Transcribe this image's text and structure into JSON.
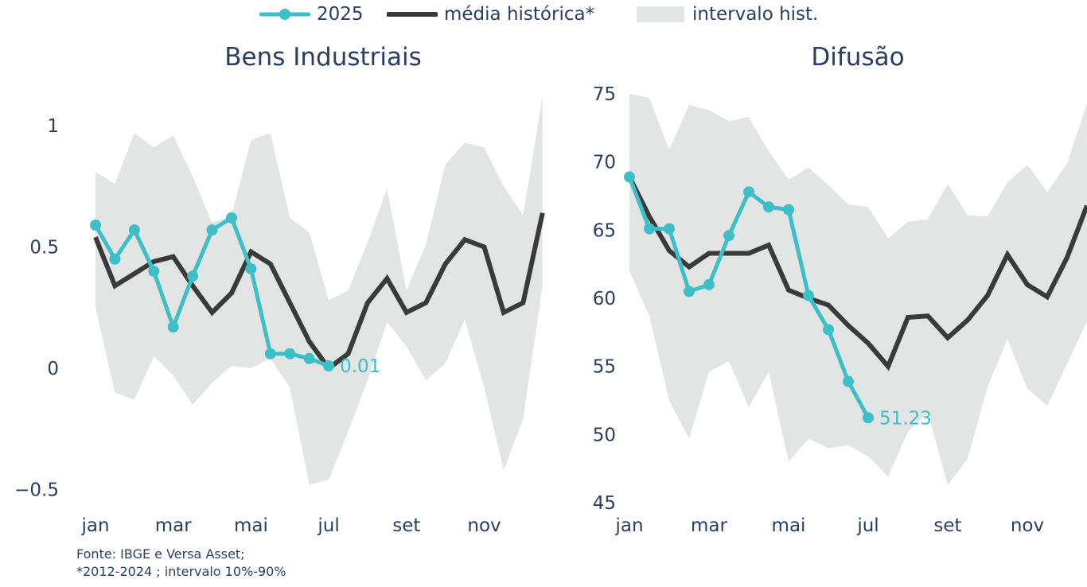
{
  "legend": {
    "items": [
      {
        "label": "2025",
        "color": "#3cbfc6",
        "kind": "line-marker"
      },
      {
        "label": "média histórica*",
        "color": "#3a3a3a",
        "kind": "line"
      },
      {
        "label": "intervalo hist.",
        "color": "#e3e4e4",
        "kind": "band"
      }
    ]
  },
  "footnote": {
    "line1": "Fonte: IBGE e Versa Asset;",
    "line2": "*2012-2024 ; intervalo 10%-90%"
  },
  "chart_data": [
    {
      "type": "line",
      "title": "Bens Industriais",
      "x_ticks": [
        "jan",
        "mar",
        "mai",
        "jul",
        "set",
        "nov"
      ],
      "y_ticks": [
        "−0.5",
        "0",
        "0.5",
        "1"
      ],
      "y_tick_values": [
        -0.5,
        0,
        0.5,
        1
      ],
      "ylim": [
        -0.53,
        1.13
      ],
      "xlim": [
        0.0,
        11.75
      ],
      "end_label": "0.01",
      "series": [
        {
          "name": "2025",
          "color": "#3cbfc6",
          "x": [
            0,
            0.5,
            1,
            1.5,
            2,
            2.5,
            3,
            3.5,
            4,
            4.5,
            5,
            5.5,
            6
          ],
          "values": [
            0.59,
            0.45,
            0.57,
            0.4,
            0.17,
            0.38,
            0.57,
            0.62,
            0.41,
            0.06,
            0.06,
            0.04,
            0.01
          ]
        },
        {
          "name": "média histórica*",
          "color": "#3a3a3a",
          "x": [
            0,
            0.5,
            1,
            1.5,
            2,
            2.5,
            3,
            3.5,
            4,
            4.5,
            5,
            5.5,
            6,
            6.5,
            7,
            7.5,
            8,
            8.5,
            9,
            9.5,
            10,
            10.5,
            11,
            11.5
          ],
          "values": [
            0.54,
            0.34,
            0.39,
            0.44,
            0.46,
            0.34,
            0.23,
            0.31,
            0.48,
            0.43,
            0.27,
            0.11,
            0.0,
            0.06,
            0.27,
            0.37,
            0.23,
            0.27,
            0.43,
            0.53,
            0.5,
            0.23,
            0.27,
            0.64
          ]
        }
      ],
      "band": {
        "name": "intervalo hist.",
        "color": "#e3e4e4",
        "x": [
          0,
          0.5,
          1,
          1.5,
          2,
          2.5,
          3,
          3.5,
          4,
          4.5,
          5,
          5.5,
          6,
          6.5,
          7,
          7.5,
          8,
          8.5,
          9,
          9.5,
          10,
          10.5,
          11,
          11.5
        ],
        "upper": [
          0.81,
          0.76,
          0.97,
          0.91,
          0.96,
          0.79,
          0.6,
          0.63,
          0.94,
          0.97,
          0.62,
          0.56,
          0.28,
          0.32,
          0.52,
          0.74,
          0.32,
          0.51,
          0.84,
          0.93,
          0.91,
          0.75,
          0.63,
          1.12
        ],
        "lower": [
          0.25,
          -0.1,
          -0.13,
          0.05,
          -0.03,
          -0.15,
          -0.06,
          0.01,
          0.0,
          0.04,
          -0.08,
          -0.48,
          -0.46,
          -0.26,
          -0.05,
          0.19,
          0.09,
          -0.05,
          0.02,
          0.2,
          -0.08,
          -0.42,
          -0.21,
          0.34
        ]
      }
    },
    {
      "type": "line",
      "title": "Difusão",
      "x_ticks": [
        "jan",
        "mar",
        "mai",
        "jul",
        "set",
        "nov"
      ],
      "y_ticks": [
        "45",
        "50",
        "55",
        "60",
        "65",
        "70",
        "75"
      ],
      "y_tick_values": [
        45,
        50,
        55,
        60,
        65,
        70,
        75
      ],
      "ylim": [
        45,
        75
      ],
      "xlim": [
        0.0,
        11.5
      ],
      "end_label": "51.23",
      "series": [
        {
          "name": "2025",
          "color": "#3cbfc6",
          "x": [
            0,
            0.5,
            1,
            1.5,
            2,
            2.5,
            3,
            3.5,
            4,
            4.5,
            5,
            5.5,
            6
          ],
          "values": [
            68.9,
            65.1,
            65.1,
            60.5,
            61.0,
            64.6,
            67.8,
            66.7,
            66.5,
            60.2,
            57.7,
            53.9,
            51.23
          ]
        },
        {
          "name": "média histórica*",
          "color": "#3a3a3a",
          "x": [
            0,
            0.5,
            1,
            1.5,
            2,
            2.5,
            3,
            3.5,
            4,
            4.5,
            5,
            5.5,
            6,
            6.5,
            7,
            7.5,
            8,
            8.5,
            9,
            9.5,
            10,
            10.5,
            11,
            11.5
          ],
          "values": [
            68.9,
            66.0,
            63.5,
            62.3,
            63.3,
            63.3,
            63.3,
            63.9,
            60.6,
            60.0,
            59.5,
            58.0,
            56.7,
            55.0,
            58.6,
            58.7,
            57.1,
            58.4,
            60.2,
            63.2,
            61.0,
            60.1,
            63.0,
            66.8
          ]
        }
      ],
      "band": {
        "name": "intervalo hist.",
        "color": "#e3e4e4",
        "x": [
          0,
          0.5,
          1,
          1.5,
          2,
          2.5,
          3,
          3.5,
          4,
          4.5,
          5,
          5.5,
          6,
          6.5,
          7,
          7.5,
          8,
          8.5,
          9,
          9.5,
          10,
          10.5,
          11,
          11.5
        ],
        "upper": [
          75.0,
          74.7,
          70.9,
          74.2,
          73.8,
          73.0,
          73.3,
          70.8,
          68.7,
          69.6,
          68.3,
          66.9,
          66.7,
          64.4,
          65.6,
          65.8,
          68.4,
          66.1,
          66.0,
          68.5,
          69.8,
          67.8,
          69.9,
          74.3
        ]
      }
    }
  ]
}
